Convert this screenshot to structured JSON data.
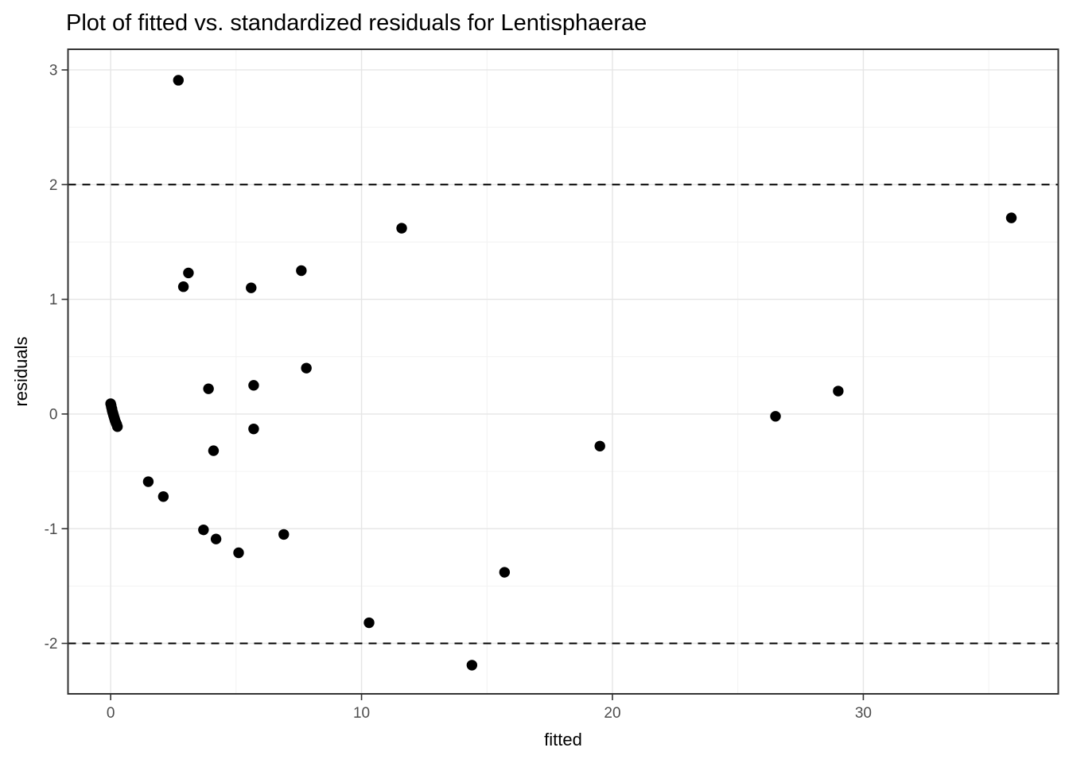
{
  "page": {
    "background": "#ffffff"
  },
  "chart_data": {
    "type": "scatter",
    "title": "Plot of fitted vs. standardized residuals for Lentisphaerae",
    "xlabel": "fitted",
    "ylabel": "residuals",
    "xlim": [
      -1.7,
      37.77
    ],
    "ylim": [
      -2.44,
      3.18
    ],
    "x_ticks": [
      0,
      10,
      20,
      30
    ],
    "x_minor_ticks": [
      5,
      15,
      25,
      35
    ],
    "y_ticks": [
      -2,
      -1,
      0,
      1,
      2,
      3
    ],
    "y_minor_ticks": [
      -1.5,
      -0.5,
      0.5,
      1.5,
      2.5
    ],
    "reference_lines_y": [
      2,
      -2
    ],
    "grid": "on",
    "legend": "none",
    "colors": {
      "point": "#000000",
      "reference_line": "#000000",
      "grid_major": "#e5e5e5",
      "grid_minor": "#f1f1f1",
      "panel_border": "#333333",
      "tick_mark": "#333333",
      "tick_label": "#4d4d4d",
      "text": "#000000",
      "panel_background": "#ffffff"
    },
    "points": [
      [
        0.0,
        0.09
      ],
      [
        0.02,
        0.075
      ],
      [
        0.03,
        0.06
      ],
      [
        0.05,
        0.045
      ],
      [
        0.06,
        0.03
      ],
      [
        0.08,
        0.015
      ],
      [
        0.1,
        0.0
      ],
      [
        0.12,
        -0.015
      ],
      [
        0.14,
        -0.03
      ],
      [
        0.16,
        -0.045
      ],
      [
        0.18,
        -0.06
      ],
      [
        0.21,
        -0.075
      ],
      [
        0.24,
        -0.09
      ],
      [
        0.27,
        -0.11
      ],
      [
        1.5,
        -0.59
      ],
      [
        2.1,
        -0.72
      ],
      [
        2.7,
        2.91
      ],
      [
        2.9,
        1.11
      ],
      [
        3.1,
        1.23
      ],
      [
        3.7,
        -1.01
      ],
      [
        3.9,
        0.22
      ],
      [
        4.1,
        -0.32
      ],
      [
        4.2,
        -1.09
      ],
      [
        5.1,
        -1.21
      ],
      [
        5.6,
        1.1
      ],
      [
        5.7,
        0.25
      ],
      [
        5.7,
        -0.13
      ],
      [
        6.9,
        -1.05
      ],
      [
        7.6,
        1.25
      ],
      [
        7.8,
        0.4
      ],
      [
        10.3,
        -1.82
      ],
      [
        11.6,
        1.62
      ],
      [
        14.4,
        -2.19
      ],
      [
        15.7,
        -1.38
      ],
      [
        19.5,
        -0.28
      ],
      [
        26.5,
        -0.02
      ],
      [
        29.0,
        0.2
      ],
      [
        35.9,
        1.71
      ]
    ]
  }
}
